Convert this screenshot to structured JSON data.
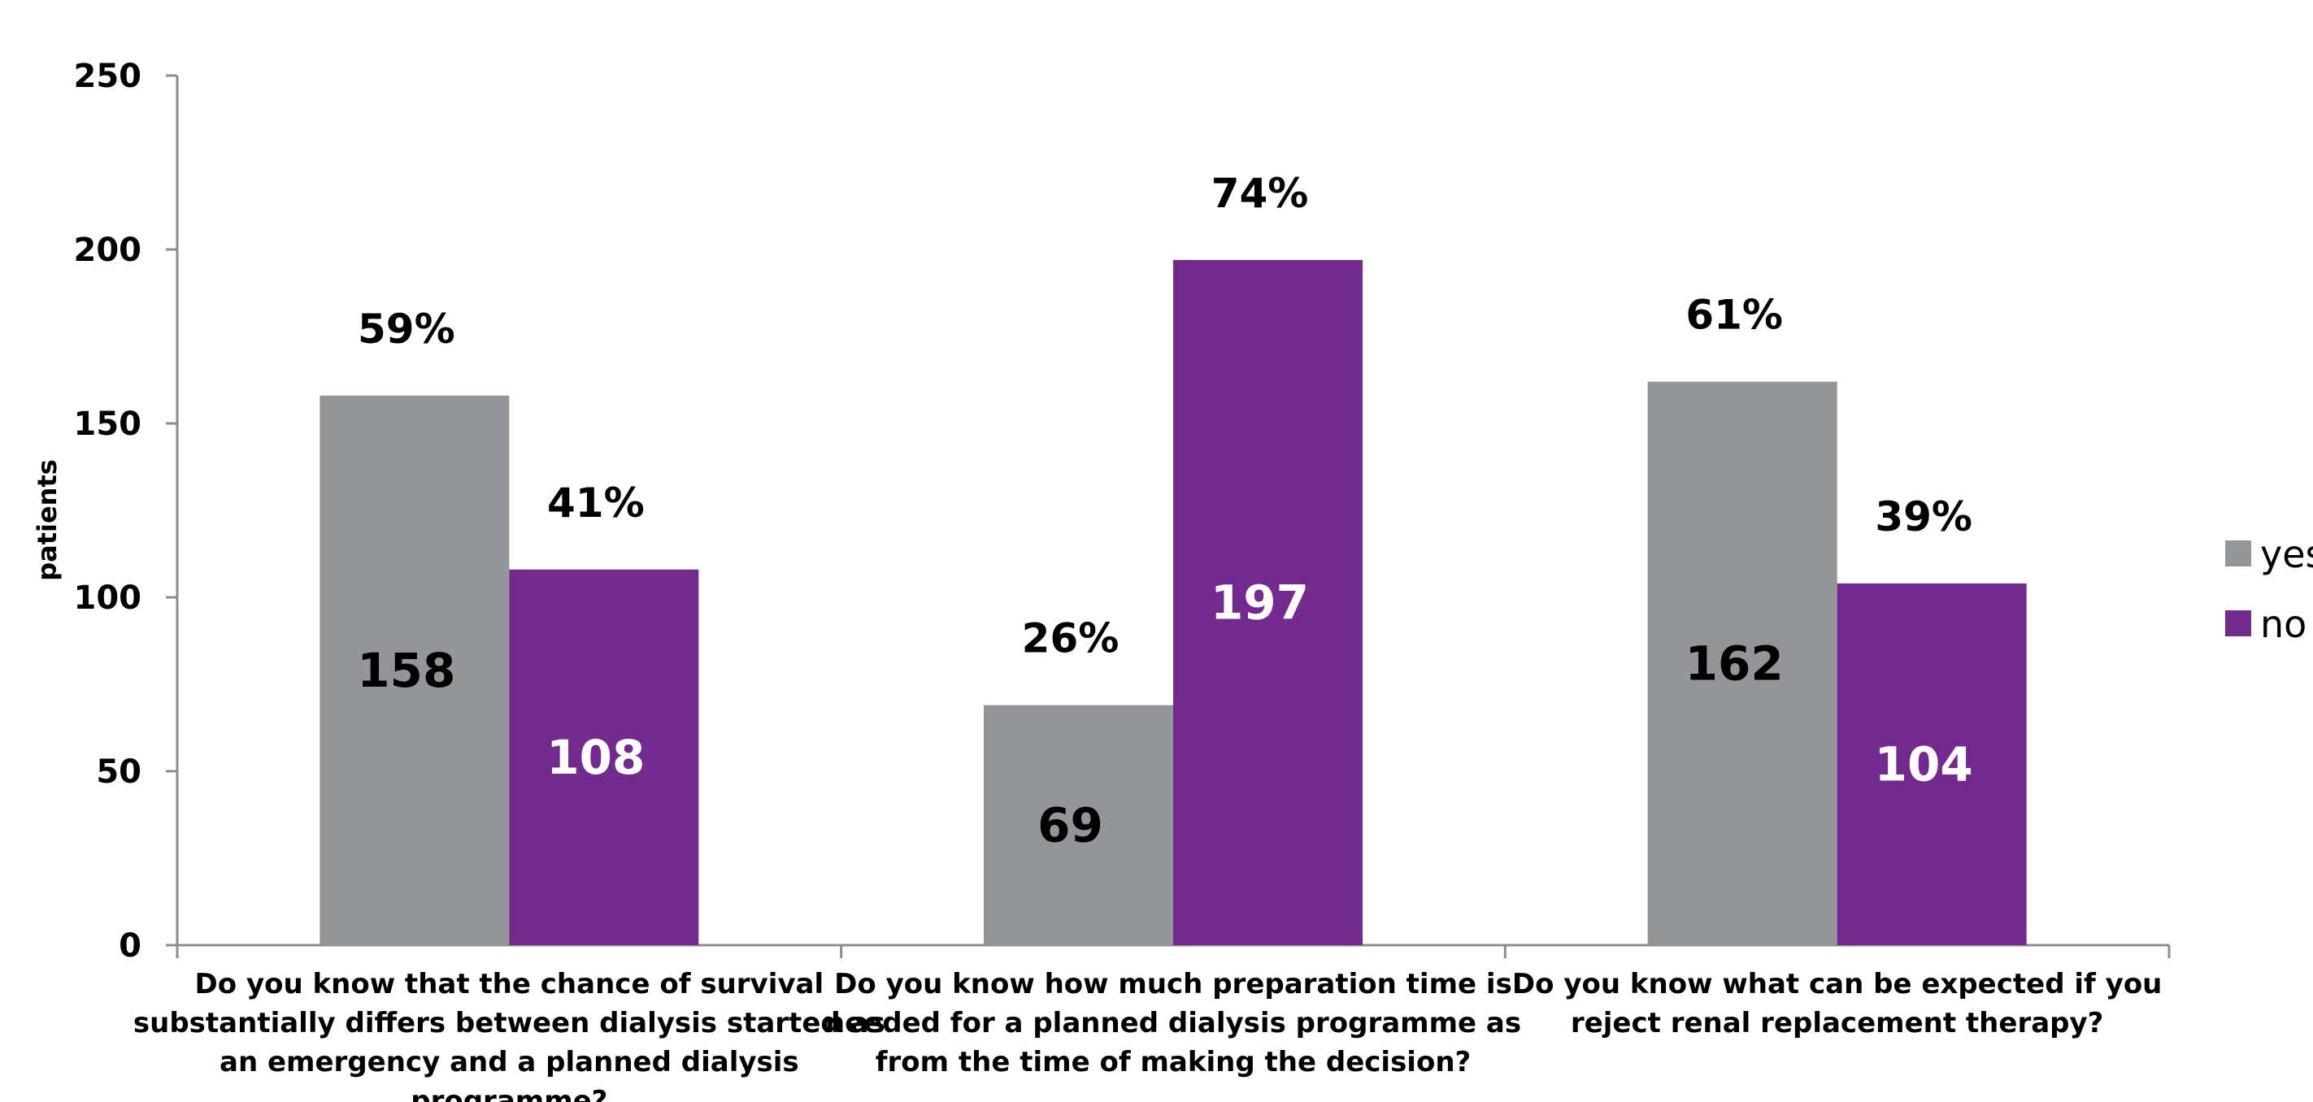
{
  "chart_data": {
    "type": "bar",
    "ylabel": "patients",
    "ylim": [
      0,
      250
    ],
    "yticks": [
      0,
      50,
      100,
      150,
      200,
      250
    ],
    "categories": [
      [
        "Do you know that the chance of survival",
        "substantially differs between dialysis started as",
        "an emergency and a planned dialysis",
        "programme?"
      ],
      [
        "Do you know how much preparation time is",
        "needed for a planned dialysis programme as",
        "from the time of making the decision?"
      ],
      [
        "Do you know what can be expected if you",
        "reject renal replacement therapy?"
      ]
    ],
    "series": [
      {
        "name": "yes",
        "color": "#939598",
        "value_label_color": "#000000",
        "values": [
          158,
          69,
          162
        ],
        "percent_labels": [
          "59%",
          "26%",
          "61%"
        ]
      },
      {
        "name": "no",
        "color": "#732a8f",
        "value_label_color": "#ffffff",
        "values": [
          108,
          197,
          104
        ],
        "percent_labels": [
          "41%",
          "74%",
          "39%"
        ]
      }
    ],
    "legend": "right",
    "grid": false
  }
}
